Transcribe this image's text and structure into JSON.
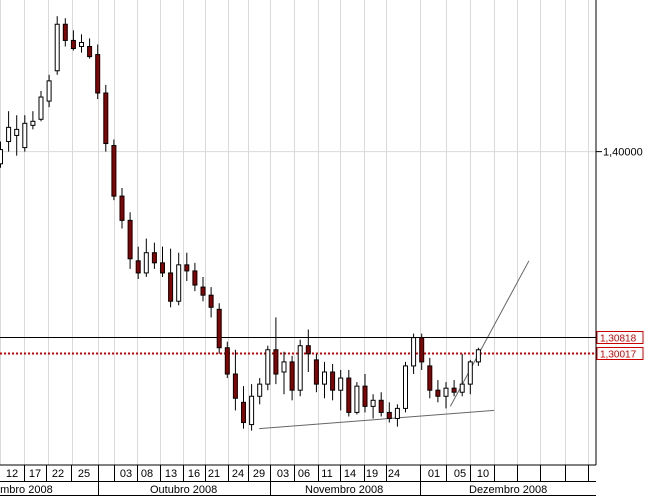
{
  "chart_data": {
    "type": "candlestick",
    "xlabel": "",
    "ylabel": "",
    "ylim": [
      1.245,
      1.475
    ],
    "price_axis": {
      "tick_label": "1,40000",
      "tick_value": 1.4
    },
    "levels": [
      {
        "label": "1,30818",
        "value": 1.30818,
        "color": "#000000",
        "style": "solid"
      },
      {
        "label": "1,30017",
        "value": 1.30017,
        "color": "#cc0000",
        "style": "dotted"
      }
    ],
    "x_day_labels": [
      "12",
      "17",
      "22",
      "25",
      "03",
      "08",
      "13",
      "16",
      "21",
      "24",
      "29",
      "03",
      "06",
      "11",
      "14",
      "19",
      "24",
      "01",
      "05",
      "10"
    ],
    "x_month_labels": [
      "embro 2008",
      "Outubro 2008",
      "Novembro 2008",
      "Dezembro 2008"
    ],
    "colors": {
      "up": "#ffffff",
      "down": "#8b0000",
      "doji": "#000000",
      "wick": "#000000"
    },
    "candles": [
      [
        1.394,
        1.405,
        1.392,
        1.401
      ],
      [
        1.405,
        1.42,
        1.4,
        1.412
      ],
      [
        1.408,
        1.418,
        1.398,
        1.411
      ],
      [
        1.402,
        1.418,
        1.4,
        1.414
      ],
      [
        1.413,
        1.42,
        1.411,
        1.415
      ],
      [
        1.416,
        1.43,
        1.415,
        1.427
      ],
      [
        1.425,
        1.438,
        1.422,
        1.435
      ],
      [
        1.44,
        1.467,
        1.438,
        1.463
      ],
      [
        1.463,
        1.466,
        1.452,
        1.455
      ],
      [
        1.455,
        1.46,
        1.45,
        1.451
      ],
      [
        1.452,
        1.458,
        1.449,
        1.454
      ],
      [
        1.452,
        1.456,
        1.446,
        1.447
      ],
      [
        1.448,
        1.453,
        1.426,
        1.429
      ],
      [
        1.429,
        1.433,
        1.4,
        1.404
      ],
      [
        1.403,
        1.406,
        1.376,
        1.378
      ],
      [
        1.378,
        1.382,
        1.362,
        1.366
      ],
      [
        1.366,
        1.37,
        1.342,
        1.347
      ],
      [
        1.346,
        1.353,
        1.337,
        1.34
      ],
      [
        1.34,
        1.357,
        1.338,
        1.35
      ],
      [
        1.35,
        1.355,
        1.342,
        1.345
      ],
      [
        1.345,
        1.353,
        1.338,
        1.34
      ],
      [
        1.34,
        1.352,
        1.323,
        1.326
      ],
      [
        1.326,
        1.35,
        1.324,
        1.344
      ],
      [
        1.344,
        1.35,
        1.336,
        1.341
      ],
      [
        1.341,
        1.345,
        1.331,
        1.334
      ],
      [
        1.333,
        1.338,
        1.326,
        1.329
      ],
      [
        1.329,
        1.333,
        1.318,
        1.323
      ],
      [
        1.322,
        1.325,
        1.3,
        1.303
      ],
      [
        1.303,
        1.306,
        1.288,
        1.29
      ],
      [
        1.29,
        1.302,
        1.272,
        1.278
      ],
      [
        1.276,
        1.284,
        1.263,
        1.266
      ],
      [
        1.265,
        1.285,
        1.262,
        1.279
      ],
      [
        1.279,
        1.288,
        1.275,
        1.285
      ],
      [
        1.285,
        1.304,
        1.282,
        1.302
      ],
      [
        1.302,
        1.318,
        1.285,
        1.29
      ],
      [
        1.291,
        1.301,
        1.28,
        1.296
      ],
      [
        1.296,
        1.299,
        1.277,
        1.282
      ],
      [
        1.282,
        1.307,
        1.279,
        1.304
      ],
      [
        1.304,
        1.312,
        1.291,
        1.3
      ],
      [
        1.297,
        1.3,
        1.281,
        1.285
      ],
      [
        1.285,
        1.296,
        1.278,
        1.291
      ],
      [
        1.291,
        1.295,
        1.277,
        1.282
      ],
      [
        1.282,
        1.292,
        1.272,
        1.288
      ],
      [
        1.288,
        1.292,
        1.269,
        1.271
      ],
      [
        1.271,
        1.286,
        1.27,
        1.284
      ],
      [
        1.284,
        1.29,
        1.271,
        1.274
      ],
      [
        1.274,
        1.28,
        1.268,
        1.277
      ],
      [
        1.277,
        1.281,
        1.269,
        1.271
      ],
      [
        1.271,
        1.276,
        1.266,
        1.268
      ],
      [
        1.268,
        1.275,
        1.264,
        1.273
      ],
      [
        1.273,
        1.296,
        1.271,
        1.294
      ],
      [
        1.294,
        1.31,
        1.29,
        1.308
      ],
      [
        1.308,
        1.31,
        1.292,
        1.296
      ],
      [
        1.294,
        1.298,
        1.278,
        1.282
      ],
      [
        1.282,
        1.287,
        1.276,
        1.279
      ],
      [
        1.279,
        1.286,
        1.273,
        1.283
      ],
      [
        1.283,
        1.287,
        1.279,
        1.281
      ],
      [
        1.281,
        1.3,
        1.279,
        1.285
      ],
      [
        1.285,
        1.297,
        1.28,
        1.296
      ],
      [
        1.296,
        1.303,
        1.294,
        1.302
      ]
    ],
    "trendlines": [
      {
        "name": "support",
        "x": [
          32.0,
          61.0
        ],
        "y": [
          1.263,
          1.272
        ]
      },
      {
        "name": "projection",
        "x": [
          55.6,
          65.3
        ],
        "y": [
          1.274,
          1.346
        ]
      }
    ]
  }
}
